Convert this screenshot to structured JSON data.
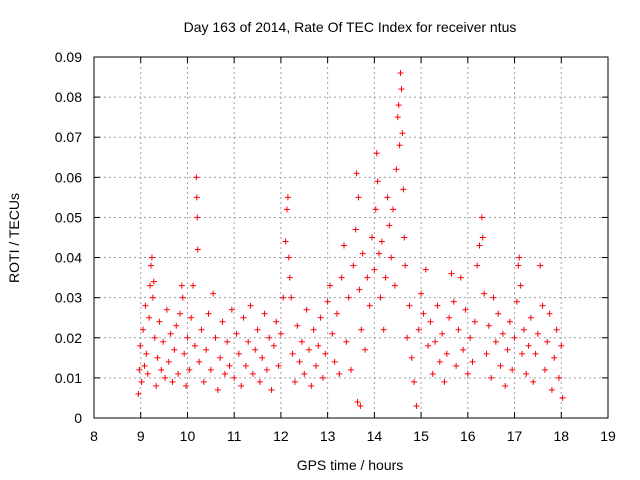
{
  "chart_data": {
    "type": "scatter",
    "title": "Day 163 of 2014, Rate Of TEC Index for receiver ntus",
    "xlabel": "GPS time / hours",
    "ylabel": "ROTI / TECUs",
    "xlim": [
      8,
      19
    ],
    "ylim": [
      0,
      0.09
    ],
    "xticks": [
      "8",
      "9",
      "10",
      "11",
      "12",
      "13",
      "14",
      "15",
      "16",
      "17",
      "18",
      "19"
    ],
    "yticks": [
      "0",
      "0.01",
      "0.02",
      "0.03",
      "0.04",
      "0.05",
      "0.06",
      "0.07",
      "0.08",
      "0.09"
    ],
    "grid": true,
    "marker": "plus",
    "color": "#ff0000",
    "series": [
      {
        "name": "ROTI",
        "points": [
          [
            8.95,
            0.006
          ],
          [
            8.97,
            0.012
          ],
          [
            8.99,
            0.018
          ],
          [
            9.02,
            0.009
          ],
          [
            9.05,
            0.022
          ],
          [
            9.08,
            0.013
          ],
          [
            9.1,
            0.028
          ],
          [
            9.12,
            0.016
          ],
          [
            9.15,
            0.011
          ],
          [
            9.18,
            0.025
          ],
          [
            9.2,
            0.033
          ],
          [
            9.22,
            0.038
          ],
          [
            9.24,
            0.04
          ],
          [
            9.26,
            0.03
          ],
          [
            9.28,
            0.034
          ],
          [
            9.3,
            0.02
          ],
          [
            9.33,
            0.008
          ],
          [
            9.36,
            0.015
          ],
          [
            9.4,
            0.024
          ],
          [
            9.44,
            0.012
          ],
          [
            9.48,
            0.019
          ],
          [
            9.52,
            0.01
          ],
          [
            9.56,
            0.027
          ],
          [
            9.6,
            0.014
          ],
          [
            9.64,
            0.021
          ],
          [
            9.68,
            0.009
          ],
          [
            9.72,
            0.017
          ],
          [
            9.76,
            0.023
          ],
          [
            9.8,
            0.011
          ],
          [
            9.84,
            0.026
          ],
          [
            9.88,
            0.033
          ],
          [
            9.9,
            0.03
          ],
          [
            9.93,
            0.016
          ],
          [
            9.97,
            0.008
          ],
          [
            10.0,
            0.02
          ],
          [
            10.04,
            0.012
          ],
          [
            10.08,
            0.025
          ],
          [
            10.12,
            0.033
          ],
          [
            10.16,
            0.018
          ],
          [
            10.19,
            0.06
          ],
          [
            10.2,
            0.055
          ],
          [
            10.21,
            0.05
          ],
          [
            10.22,
            0.042
          ],
          [
            10.25,
            0.014
          ],
          [
            10.3,
            0.022
          ],
          [
            10.35,
            0.009
          ],
          [
            10.4,
            0.017
          ],
          [
            10.45,
            0.026
          ],
          [
            10.5,
            0.012
          ],
          [
            10.55,
            0.031
          ],
          [
            10.6,
            0.02
          ],
          [
            10.65,
            0.007
          ],
          [
            10.7,
            0.015
          ],
          [
            10.75,
            0.024
          ],
          [
            10.8,
            0.011
          ],
          [
            10.85,
            0.019
          ],
          [
            10.9,
            0.013
          ],
          [
            10.95,
            0.027
          ],
          [
            11.0,
            0.01
          ],
          [
            11.05,
            0.021
          ],
          [
            11.1,
            0.016
          ],
          [
            11.15,
            0.008
          ],
          [
            11.2,
            0.025
          ],
          [
            11.25,
            0.013
          ],
          [
            11.3,
            0.019
          ],
          [
            11.35,
            0.028
          ],
          [
            11.4,
            0.011
          ],
          [
            11.45,
            0.017
          ],
          [
            11.5,
            0.022
          ],
          [
            11.55,
            0.009
          ],
          [
            11.6,
            0.015
          ],
          [
            11.65,
            0.026
          ],
          [
            11.7,
            0.012
          ],
          [
            11.75,
            0.02
          ],
          [
            11.8,
            0.007
          ],
          [
            11.85,
            0.018
          ],
          [
            11.9,
            0.024
          ],
          [
            11.95,
            0.013
          ],
          [
            12.0,
            0.021
          ],
          [
            12.05,
            0.03
          ],
          [
            12.1,
            0.044
          ],
          [
            12.13,
            0.052
          ],
          [
            12.15,
            0.055
          ],
          [
            12.17,
            0.04
          ],
          [
            12.19,
            0.035
          ],
          [
            12.22,
            0.03
          ],
          [
            12.25,
            0.016
          ],
          [
            12.3,
            0.009
          ],
          [
            12.35,
            0.023
          ],
          [
            12.4,
            0.014
          ],
          [
            12.45,
            0.019
          ],
          [
            12.5,
            0.011
          ],
          [
            12.55,
            0.027
          ],
          [
            12.6,
            0.017
          ],
          [
            12.65,
            0.008
          ],
          [
            12.7,
            0.022
          ],
          [
            12.75,
            0.013
          ],
          [
            12.8,
            0.018
          ],
          [
            12.85,
            0.025
          ],
          [
            12.9,
            0.01
          ],
          [
            12.95,
            0.016
          ],
          [
            13.0,
            0.029
          ],
          [
            13.05,
            0.033
          ],
          [
            13.1,
            0.021
          ],
          [
            13.15,
            0.014
          ],
          [
            13.2,
            0.026
          ],
          [
            13.25,
            0.011
          ],
          [
            13.3,
            0.035
          ],
          [
            13.35,
            0.043
          ],
          [
            13.4,
            0.019
          ],
          [
            13.45,
            0.03
          ],
          [
            13.5,
            0.012
          ],
          [
            13.55,
            0.038
          ],
          [
            13.6,
            0.047
          ],
          [
            13.62,
            0.061
          ],
          [
            13.64,
            0.004
          ],
          [
            13.66,
            0.055
          ],
          [
            13.68,
            0.032
          ],
          [
            13.7,
            0.003
          ],
          [
            13.72,
            0.022
          ],
          [
            13.75,
            0.041
          ],
          [
            13.8,
            0.017
          ],
          [
            13.85,
            0.035
          ],
          [
            13.9,
            0.028
          ],
          [
            13.95,
            0.045
          ],
          [
            14.0,
            0.037
          ],
          [
            14.03,
            0.052
          ],
          [
            14.05,
            0.066
          ],
          [
            14.07,
            0.059
          ],
          [
            14.1,
            0.041
          ],
          [
            14.13,
            0.03
          ],
          [
            14.16,
            0.044
          ],
          [
            14.2,
            0.022
          ],
          [
            14.24,
            0.035
          ],
          [
            14.28,
            0.055
          ],
          [
            14.32,
            0.048
          ],
          [
            14.36,
            0.04
          ],
          [
            14.4,
            0.052
          ],
          [
            14.44,
            0.033
          ],
          [
            14.47,
            0.062
          ],
          [
            14.5,
            0.075
          ],
          [
            14.52,
            0.078
          ],
          [
            14.54,
            0.068
          ],
          [
            14.56,
            0.086
          ],
          [
            14.58,
            0.082
          ],
          [
            14.6,
            0.071
          ],
          [
            14.62,
            0.057
          ],
          [
            14.64,
            0.045
          ],
          [
            14.66,
            0.038
          ],
          [
            14.7,
            0.02
          ],
          [
            14.75,
            0.028
          ],
          [
            14.8,
            0.015
          ],
          [
            14.85,
            0.009
          ],
          [
            14.9,
            0.003
          ],
          [
            14.95,
            0.022
          ],
          [
            15.0,
            0.031
          ],
          [
            15.05,
            0.026
          ],
          [
            15.1,
            0.037
          ],
          [
            15.15,
            0.018
          ],
          [
            15.2,
            0.024
          ],
          [
            15.25,
            0.011
          ],
          [
            15.3,
            0.019
          ],
          [
            15.35,
            0.028
          ],
          [
            15.4,
            0.014
          ],
          [
            15.45,
            0.021
          ],
          [
            15.5,
            0.009
          ],
          [
            15.55,
            0.016
          ],
          [
            15.6,
            0.025
          ],
          [
            15.65,
            0.036
          ],
          [
            15.7,
            0.029
          ],
          [
            15.75,
            0.013
          ],
          [
            15.8,
            0.022
          ],
          [
            15.85,
            0.035
          ],
          [
            15.9,
            0.017
          ],
          [
            15.95,
            0.027
          ],
          [
            16.0,
            0.011
          ],
          [
            16.05,
            0.02
          ],
          [
            16.1,
            0.014
          ],
          [
            16.15,
            0.024
          ],
          [
            16.2,
            0.038
          ],
          [
            16.25,
            0.043
          ],
          [
            16.3,
            0.05
          ],
          [
            16.32,
            0.045
          ],
          [
            16.35,
            0.031
          ],
          [
            16.4,
            0.016
          ],
          [
            16.45,
            0.023
          ],
          [
            16.5,
            0.01
          ],
          [
            16.55,
            0.03
          ],
          [
            16.6,
            0.019
          ],
          [
            16.65,
            0.026
          ],
          [
            16.7,
            0.013
          ],
          [
            16.75,
            0.021
          ],
          [
            16.8,
            0.008
          ],
          [
            16.85,
            0.017
          ],
          [
            16.9,
            0.024
          ],
          [
            16.95,
            0.012
          ],
          [
            17.0,
            0.02
          ],
          [
            17.05,
            0.029
          ],
          [
            17.08,
            0.038
          ],
          [
            17.1,
            0.04
          ],
          [
            17.13,
            0.033
          ],
          [
            17.16,
            0.016
          ],
          [
            17.2,
            0.022
          ],
          [
            17.25,
            0.011
          ],
          [
            17.3,
            0.018
          ],
          [
            17.35,
            0.025
          ],
          [
            17.4,
            0.009
          ],
          [
            17.45,
            0.016
          ],
          [
            17.5,
            0.021
          ],
          [
            17.55,
            0.038
          ],
          [
            17.6,
            0.028
          ],
          [
            17.65,
            0.012
          ],
          [
            17.7,
            0.019
          ],
          [
            17.75,
            0.026
          ],
          [
            17.8,
            0.007
          ],
          [
            17.85,
            0.015
          ],
          [
            17.9,
            0.022
          ],
          [
            17.95,
            0.01
          ],
          [
            18.0,
            0.018
          ],
          [
            18.03,
            0.005
          ]
        ]
      }
    ]
  }
}
